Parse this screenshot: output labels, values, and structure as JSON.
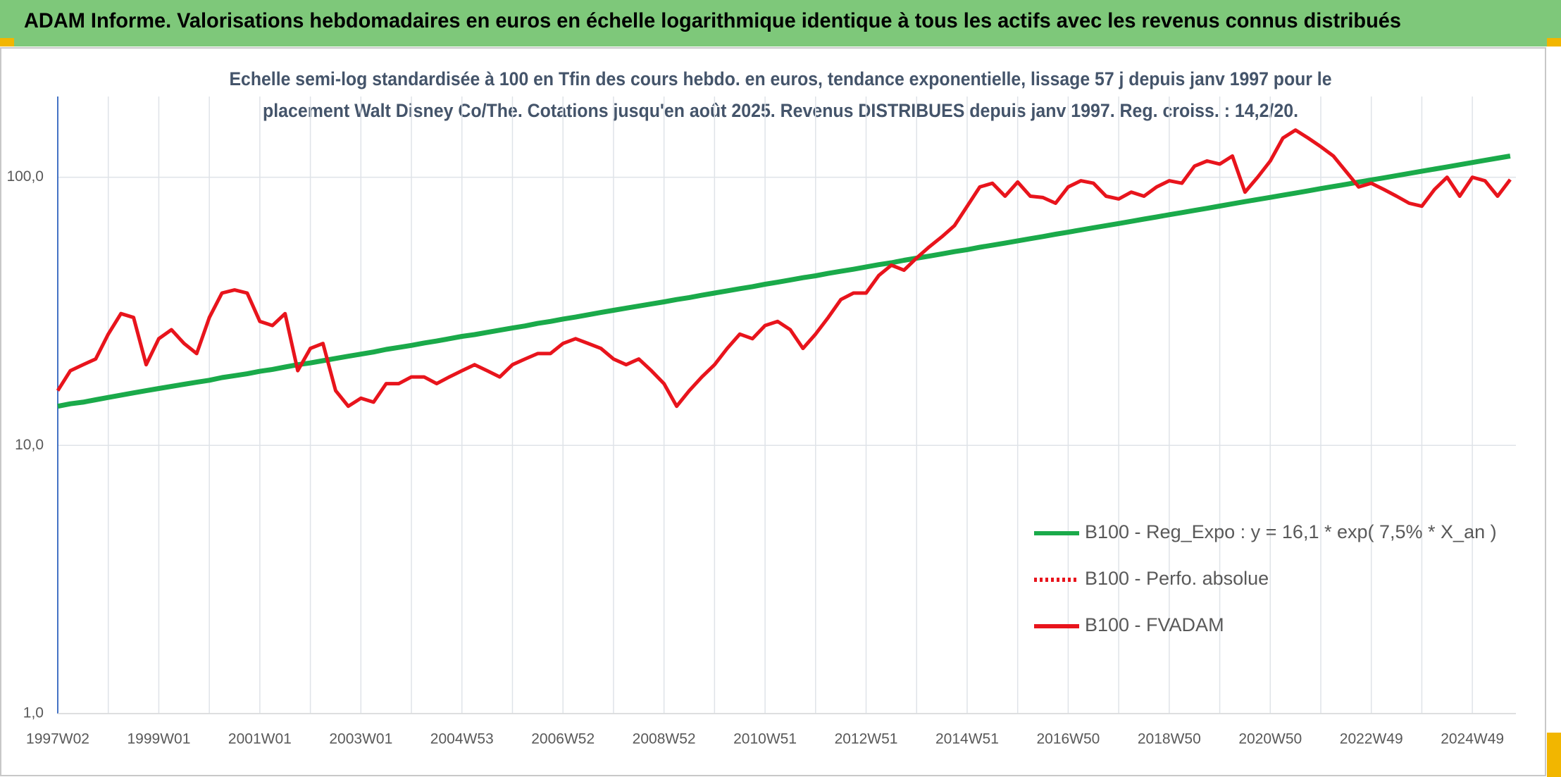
{
  "chart_data": {
    "type": "line",
    "title": "ADAM Informe. Valorisations hebdomadaires en euros en échelle logarithmique identique à tous les actifs avec les revenus connus distribués",
    "subtitle": [
      "Echelle semi-log standardisée à 100 en Tfin des cours hebdo. en euros, tendance exponentielle, lissage 57 j depuis janv 1997 pour le",
      "placement Walt Disney Co/The. Cotations jusqu'en août 2025. Revenus DISTRIBUES depuis janv 1997. Reg. croiss. : 14,2/20."
    ],
    "log_scale": true,
    "grid": true,
    "legend": "lower-right",
    "ylim": [
      1,
      200
    ],
    "yticks": [
      {
        "value": 1,
        "label": "1,0"
      },
      {
        "value": 10,
        "label": "10,0"
      },
      {
        "value": 100,
        "label": "100,0"
      }
    ],
    "categories": [
      "1997W02",
      null,
      null,
      null,
      null,
      null,
      null,
      null,
      "1999W01",
      null,
      null,
      null,
      null,
      null,
      null,
      null,
      "2001W01",
      null,
      null,
      null,
      null,
      null,
      null,
      null,
      "2003W01",
      null,
      null,
      null,
      null,
      null,
      null,
      null,
      "2004W53",
      null,
      null,
      null,
      null,
      null,
      null,
      null,
      "2006W52",
      null,
      null,
      null,
      null,
      null,
      null,
      null,
      "2008W52",
      null,
      null,
      null,
      null,
      null,
      null,
      null,
      "2010W51",
      null,
      null,
      null,
      null,
      null,
      null,
      null,
      "2012W51",
      null,
      null,
      null,
      null,
      null,
      null,
      null,
      "2014W51",
      null,
      null,
      null,
      null,
      null,
      null,
      null,
      "2016W50",
      null,
      null,
      null,
      null,
      null,
      null,
      null,
      "2018W50",
      null,
      null,
      null,
      null,
      null,
      null,
      null,
      "2020W50",
      null,
      null,
      null,
      null,
      null,
      null,
      null,
      "2022W49",
      null,
      null,
      null,
      null,
      null,
      null,
      null,
      "2024W49",
      null,
      null,
      null
    ],
    "series": [
      {
        "name": "B100 - Reg_Expo : y = 16,1 * exp( 7,5% *  X_an )",
        "color": "#1aaa4a",
        "dash": "solid",
        "values": [
          14.0,
          14.3,
          14.5,
          14.8,
          15.1,
          15.4,
          15.7,
          16.0,
          16.3,
          16.6,
          16.9,
          17.2,
          17.5,
          17.9,
          18.2,
          18.5,
          18.9,
          19.2,
          19.6,
          20.0,
          20.3,
          20.7,
          21.1,
          21.5,
          21.9,
          22.3,
          22.8,
          23.2,
          23.6,
          24.1,
          24.5,
          25.0,
          25.5,
          25.9,
          26.4,
          26.9,
          27.4,
          27.9,
          28.5,
          29.0,
          29.6,
          30.1,
          30.7,
          31.3,
          31.9,
          32.5,
          33.1,
          33.7,
          34.3,
          35.0,
          35.6,
          36.3,
          37.0,
          37.7,
          38.4,
          39.1,
          39.9,
          40.6,
          41.4,
          42.2,
          42.9,
          43.8,
          44.6,
          45.4,
          46.3,
          47.2,
          48.0,
          49.0,
          49.9,
          50.8,
          51.8,
          52.8,
          53.7,
          54.8,
          55.8,
          56.8,
          57.9,
          59.0,
          60.1,
          61.3,
          62.4,
          63.6,
          64.8,
          66.0,
          67.2,
          68.5,
          69.8,
          71.1,
          72.5,
          73.8,
          75.2,
          76.6,
          78.1,
          79.6,
          81.1,
          82.6,
          84.1,
          85.7,
          87.3,
          89.0,
          90.7,
          92.4,
          94.1,
          95.9,
          97.7,
          99.5,
          101.4,
          103.3,
          105.3,
          107.3,
          109.3,
          111.4,
          113.5,
          115.6,
          117.8,
          120.0
        ]
      },
      {
        "name": "B100 - Perfo. absolue",
        "color": "#e8141c",
        "dash": "dotted"
      },
      {
        "name": "B100 - FVADAM",
        "color": "#e8141c",
        "dash": "solid",
        "values": [
          16,
          19,
          20,
          21,
          26,
          31,
          30,
          20,
          25,
          27,
          24,
          22,
          30,
          37,
          38,
          37,
          29,
          28,
          31,
          19,
          23,
          24,
          16,
          14,
          15,
          14.5,
          17,
          17,
          18,
          18,
          17,
          18,
          19,
          20,
          19,
          18,
          20,
          21,
          22,
          22,
          24,
          25,
          24,
          23,
          21,
          20,
          21,
          19,
          17,
          14,
          16,
          18,
          20,
          23,
          26,
          25,
          28,
          29,
          27,
          23,
          26,
          30,
          35,
          37,
          37,
          43,
          47,
          45,
          50,
          55,
          60,
          66,
          78,
          92,
          95,
          85,
          96,
          85,
          84,
          80,
          92,
          97,
          95,
          85,
          83,
          88,
          85,
          92,
          97,
          95,
          110,
          115,
          112,
          120,
          88,
          100,
          115,
          140,
          150,
          140,
          130,
          120,
          105,
          92,
          95,
          90,
          85,
          80,
          78,
          90,
          100,
          85,
          100,
          97,
          85,
          98
        ]
      }
    ]
  }
}
